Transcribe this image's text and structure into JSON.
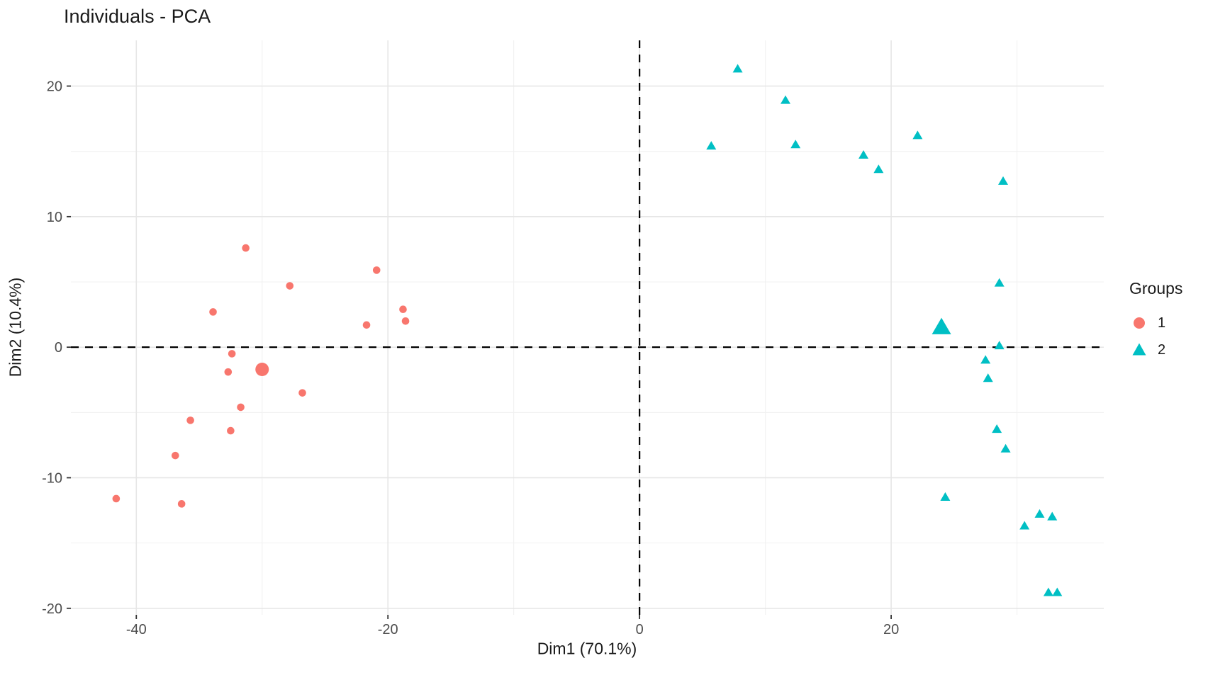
{
  "title": "Individuals - PCA",
  "legend": {
    "title": "Groups",
    "items": [
      {
        "label": "1",
        "shape": "circle",
        "color": "#F8766D"
      },
      {
        "label": "2",
        "shape": "triangle",
        "color": "#00BFC4"
      }
    ]
  },
  "chart_data": {
    "type": "scatter",
    "title": "Individuals - PCA",
    "xlabel": "Dim1 (70.1%)",
    "ylabel": "Dim2 (10.4%)",
    "xlim": [
      -45.2,
      36.9
    ],
    "ylim": [
      -20.5,
      23.5
    ],
    "x_ticks": [
      -40,
      -20,
      0,
      20
    ],
    "x_minor_ticks": [
      -30,
      -10,
      10,
      30
    ],
    "y_ticks": [
      20,
      10,
      0,
      -10,
      -20
    ],
    "y_minor_ticks": [
      15,
      5,
      -5,
      -15
    ],
    "grid": true,
    "legend_position": "right",
    "reference_lines": [
      {
        "axis": "x",
        "value": 0,
        "style": "dashed"
      },
      {
        "axis": "y",
        "value": 0,
        "style": "dashed"
      }
    ],
    "series": [
      {
        "name": "1",
        "marker": "circle",
        "color": "#F8766D",
        "points": [
          [
            -31.3,
            7.6
          ],
          [
            -20.9,
            5.9
          ],
          [
            -27.8,
            4.7
          ],
          [
            -18.8,
            2.9
          ],
          [
            -33.9,
            2.7
          ],
          [
            -18.6,
            2.0
          ],
          [
            -21.7,
            1.7
          ],
          [
            -32.4,
            -0.5
          ],
          [
            -32.7,
            -1.9
          ],
          [
            -26.8,
            -3.5
          ],
          [
            -31.7,
            -4.6
          ],
          [
            -35.7,
            -5.6
          ],
          [
            -32.5,
            -6.4
          ],
          [
            -36.9,
            -8.3
          ],
          [
            -41.6,
            -11.6
          ],
          [
            -36.4,
            -12.0
          ]
        ],
        "centroid": [
          -30.0,
          -1.7
        ]
      },
      {
        "name": "2",
        "marker": "triangle",
        "color": "#00BFC4",
        "points": [
          [
            7.8,
            21.3
          ],
          [
            11.6,
            18.9
          ],
          [
            5.7,
            15.4
          ],
          [
            12.4,
            15.5
          ],
          [
            17.8,
            14.7
          ],
          [
            22.1,
            16.2
          ],
          [
            19.0,
            13.6
          ],
          [
            28.9,
            12.7
          ],
          [
            28.6,
            4.9
          ],
          [
            28.6,
            0.1
          ],
          [
            27.5,
            -1.0
          ],
          [
            27.7,
            -2.4
          ],
          [
            28.4,
            -6.3
          ],
          [
            29.1,
            -7.8
          ],
          [
            24.3,
            -11.5
          ],
          [
            31.8,
            -12.8
          ],
          [
            32.8,
            -13.0
          ],
          [
            30.6,
            -13.7
          ],
          [
            32.5,
            -18.8
          ],
          [
            33.2,
            -18.8
          ]
        ],
        "centroid": [
          24.0,
          1.5
        ]
      }
    ]
  }
}
